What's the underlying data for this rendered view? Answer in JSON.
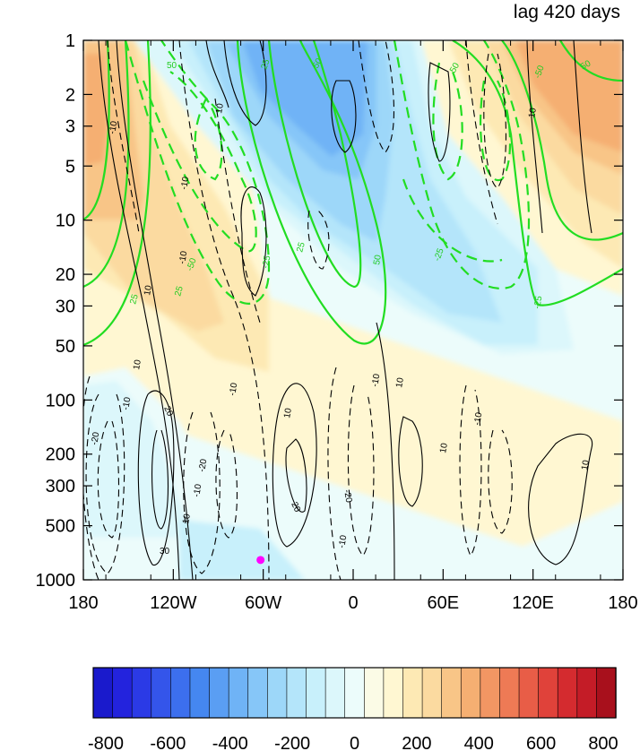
{
  "chart_data": {
    "type": "heatmap",
    "title": "lag 420 days",
    "x_ticks": [
      "180",
      "120W",
      "60W",
      "0",
      "60E",
      "120E",
      "180"
    ],
    "y_ticks": [
      "1",
      "2",
      "3",
      "5",
      "10",
      "20",
      "30",
      "50",
      "100",
      "200",
      "300",
      "500",
      "1000"
    ],
    "y_scale": "log",
    "y_range_hPa": [
      1000,
      1
    ],
    "x_range_deg": [
      -180,
      180
    ],
    "colorbar": {
      "labels": [
        "-800",
        "-600",
        "-400",
        "-200",
        "0",
        "200",
        "400",
        "600",
        "800"
      ],
      "range": [
        -800,
        800
      ],
      "colors": [
        "#1a1acc",
        "#2323dd",
        "#2b3ae6",
        "#3455ea",
        "#3c6fee",
        "#4587f0",
        "#5a9ef3",
        "#6fb3f6",
        "#86c6f8",
        "#9dd7f9",
        "#b4e5fa",
        "#c8f0fb",
        "#dcf7fb",
        "#ecfcfb",
        "#fbfbe6",
        "#fff7d2",
        "#fde9b4",
        "#fbdaa0",
        "#f8c587",
        "#f5af72",
        "#f29663",
        "#ee7a55",
        "#e85d47",
        "#e0423a",
        "#d42b2f",
        "#c41c27",
        "#a8101c"
      ]
    },
    "shading_regions": [
      {
        "region": "upper-left",
        "value": 300
      },
      {
        "region": "upper-center",
        "value": -300
      },
      {
        "region": "upper-right",
        "value": 300
      },
      {
        "region": "middle-band",
        "value": 100
      },
      {
        "region": "lower-left",
        "value": -50
      },
      {
        "region": "lower-right",
        "value": 50
      }
    ],
    "contour_labels_black": [
      "10",
      "-10",
      "20",
      "-20",
      "30"
    ],
    "contour_labels_green": [
      "50",
      "-50",
      "25",
      "-25"
    ],
    "marker": {
      "lon": -60,
      "pressure_hPa": 900,
      "color": "#ff00ff"
    }
  }
}
